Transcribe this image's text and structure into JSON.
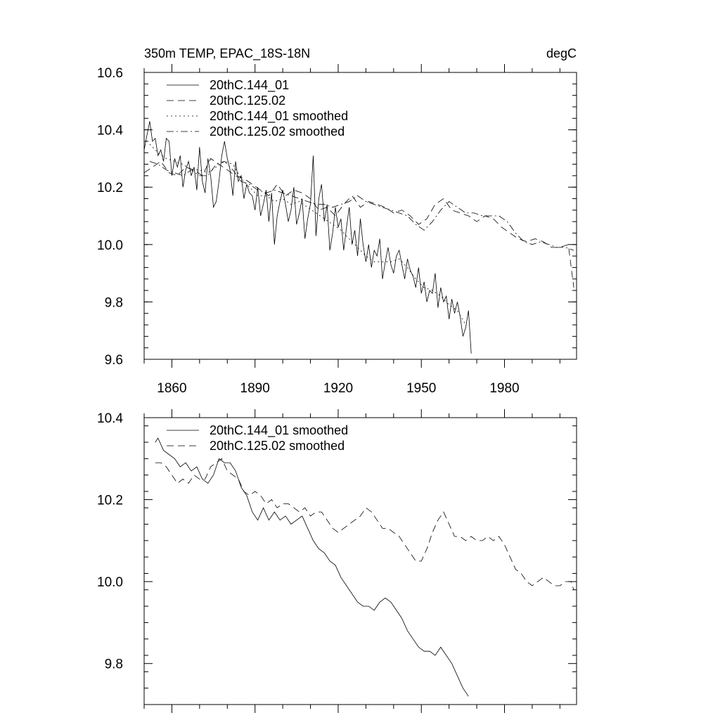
{
  "chart_data": [
    {
      "type": "line",
      "title_left": "350m TEMP, EPAC_18S-18N",
      "title_right": "degC",
      "xlabel": "",
      "ylabel": "",
      "xlim": [
        1850,
        2006
      ],
      "ylim": [
        9.6,
        10.6
      ],
      "xticks": [
        1860,
        1890,
        1920,
        1950,
        1980
      ],
      "xtick_labels": [
        "1860",
        "1890",
        "1920",
        "1950",
        "1980"
      ],
      "yticks": [
        9.6,
        9.8,
        10.0,
        10.2,
        10.4,
        10.6
      ],
      "ytick_labels": [
        "9.6",
        "9.8",
        "10.0",
        "10.2",
        "10.4",
        "10.6"
      ],
      "grid": false,
      "legend_position": "top-left",
      "series": [
        {
          "name": "20thC.144_01",
          "style": "solid",
          "x": [
            1850,
            1851,
            1852,
            1853,
            1854,
            1855,
            1856,
            1857,
            1858,
            1859,
            1860,
            1861,
            1862,
            1863,
            1864,
            1865,
            1866,
            1867,
            1868,
            1869,
            1870,
            1871,
            1872,
            1873,
            1874,
            1875,
            1876,
            1877,
            1878,
            1879,
            1880,
            1881,
            1882,
            1883,
            1884,
            1885,
            1886,
            1887,
            1888,
            1889,
            1890,
            1891,
            1892,
            1893,
            1894,
            1895,
            1896,
            1897,
            1898,
            1899,
            1900,
            1901,
            1902,
            1903,
            1904,
            1905,
            1906,
            1907,
            1908,
            1909,
            1910,
            1911,
            1912,
            1913,
            1914,
            1915,
            1916,
            1917,
            1918,
            1919,
            1920,
            1921,
            1922,
            1923,
            1924,
            1925,
            1926,
            1927,
            1928,
            1929,
            1930,
            1931,
            1932,
            1933,
            1934,
            1935,
            1936,
            1937,
            1938,
            1939,
            1940,
            1941,
            1942,
            1943,
            1944,
            1945,
            1946,
            1947,
            1948,
            1949,
            1950,
            1951,
            1952,
            1953,
            1954,
            1955,
            1956,
            1957,
            1958,
            1959,
            1960,
            1961,
            1962,
            1963,
            1964,
            1965,
            1966,
            1967,
            1968
          ],
          "values": [
            10.33,
            10.38,
            10.43,
            10.36,
            10.37,
            10.31,
            10.33,
            10.29,
            10.37,
            10.36,
            10.24,
            10.3,
            10.27,
            10.31,
            10.2,
            10.26,
            10.29,
            10.24,
            10.27,
            10.19,
            10.34,
            10.22,
            10.18,
            10.3,
            10.24,
            10.13,
            10.15,
            10.22,
            10.31,
            10.36,
            10.3,
            10.26,
            10.17,
            10.29,
            10.22,
            10.24,
            10.16,
            10.21,
            10.18,
            10.17,
            10.12,
            10.2,
            10.1,
            10.14,
            10.19,
            10.08,
            10.18,
            10.0,
            10.1,
            10.15,
            10.19,
            10.14,
            10.08,
            10.12,
            10.2,
            10.07,
            10.11,
            10.16,
            10.02,
            10.09,
            10.14,
            10.31,
            10.03,
            10.16,
            10.21,
            10.08,
            10.14,
            9.98,
            10.04,
            10.13,
            10.06,
            10.09,
            9.98,
            10.06,
            10.13,
            10.0,
            10.05,
            9.96,
            10.09,
            10.0,
            9.94,
            10.0,
            9.92,
            9.98,
            9.96,
            10.02,
            9.88,
            9.94,
            9.99,
            9.93,
            9.9,
            9.96,
            9.98,
            9.93,
            9.88,
            9.95,
            9.91,
            9.89,
            9.85,
            9.92,
            9.83,
            9.87,
            9.8,
            9.84,
            9.83,
            9.9,
            9.78,
            9.85,
            9.8,
            9.82,
            9.74,
            9.81,
            9.76,
            9.8,
            9.75,
            9.68,
            9.71,
            9.77,
            9.62
          ]
        },
        {
          "name": "20thC.125.02",
          "style": "dashed",
          "x": [
            1850,
            1853,
            1856,
            1859,
            1862,
            1865,
            1868,
            1871,
            1874,
            1877,
            1880,
            1883,
            1886,
            1889,
            1892,
            1895,
            1898,
            1901,
            1904,
            1907,
            1910,
            1913,
            1916,
            1919,
            1922,
            1925,
            1928,
            1931,
            1934,
            1937,
            1940,
            1943,
            1946,
            1949,
            1952,
            1955,
            1958,
            1961,
            1964,
            1967,
            1970,
            1973,
            1976,
            1979,
            1982,
            1985,
            1988,
            1991,
            1994,
            1997,
            2000,
            2003,
            2005
          ],
          "values": [
            10.25,
            10.27,
            10.29,
            10.25,
            10.24,
            10.27,
            10.26,
            10.24,
            10.3,
            10.28,
            10.26,
            10.24,
            10.23,
            10.21,
            10.19,
            10.17,
            10.21,
            10.17,
            10.19,
            10.18,
            10.16,
            10.12,
            10.13,
            10.1,
            10.14,
            10.17,
            10.13,
            10.15,
            10.14,
            10.13,
            10.11,
            10.12,
            10.1,
            10.07,
            10.09,
            10.14,
            10.16,
            10.12,
            10.11,
            10.1,
            10.08,
            10.1,
            10.09,
            10.06,
            10.04,
            10.02,
            10.01,
            10.02,
            10.01,
            9.99,
            9.99,
            10.0,
            9.85
          ]
        },
        {
          "name": "20thC.144_01 smoothed",
          "style": "dotted",
          "x": [
            1852,
            1855,
            1858,
            1861,
            1864,
            1867,
            1870,
            1873,
            1876,
            1879,
            1882,
            1885,
            1888,
            1891,
            1894,
            1897,
            1900,
            1903,
            1906,
            1909,
            1912,
            1915,
            1918,
            1921,
            1924,
            1927,
            1930,
            1933,
            1936,
            1939,
            1942,
            1945,
            1948,
            1951,
            1954,
            1957,
            1960,
            1963,
            1966
          ],
          "values": [
            10.35,
            10.32,
            10.3,
            10.29,
            10.28,
            10.26,
            10.26,
            10.25,
            10.27,
            10.29,
            10.28,
            10.23,
            10.2,
            10.17,
            10.17,
            10.15,
            10.16,
            10.14,
            10.15,
            10.13,
            10.11,
            10.09,
            10.07,
            10.05,
            10.02,
            9.99,
            9.96,
            9.94,
            9.94,
            9.94,
            9.95,
            9.92,
            9.88,
            9.85,
            9.84,
            9.82,
            9.79,
            9.77,
            9.72
          ]
        },
        {
          "name": "20thC.125.02 smoothed",
          "style": "dashdot",
          "x": [
            1852,
            1855,
            1858,
            1861,
            1864,
            1867,
            1870,
            1873,
            1876,
            1879,
            1882,
            1885,
            1888,
            1891,
            1894,
            1897,
            1900,
            1903,
            1906,
            1909,
            1912,
            1915,
            1918,
            1921,
            1924,
            1927,
            1930,
            1933,
            1936,
            1939,
            1942,
            1945,
            1948,
            1951,
            1954,
            1957,
            1960,
            1963,
            1966,
            1969,
            1972,
            1975,
            1978,
            1981,
            1984,
            1987,
            1990,
            1993,
            1996,
            1999,
            2002,
            2005
          ],
          "values": [
            10.29,
            10.28,
            10.26,
            10.25,
            10.24,
            10.26,
            10.24,
            10.24,
            10.28,
            10.29,
            10.26,
            10.22,
            10.21,
            10.19,
            10.18,
            10.19,
            10.18,
            10.17,
            10.16,
            10.15,
            10.14,
            10.14,
            10.13,
            10.14,
            10.15,
            10.17,
            10.15,
            10.14,
            10.13,
            10.12,
            10.11,
            10.1,
            10.07,
            10.05,
            10.08,
            10.12,
            10.15,
            10.13,
            10.11,
            10.11,
            10.1,
            10.1,
            10.1,
            10.08,
            10.04,
            10.01,
            10.0,
            10.01,
            10.0,
            9.99,
            9.99,
            9.98
          ]
        }
      ]
    },
    {
      "type": "line",
      "title_left": "",
      "title_right": "",
      "xlabel": "",
      "ylabel": "",
      "xlim": [
        1850,
        2006
      ],
      "ylim": [
        9.7,
        10.4
      ],
      "xticks": [
        1860,
        1890,
        1920,
        1950,
        1980
      ],
      "xtick_labels": [],
      "yticks": [
        9.8,
        10.0,
        10.2,
        10.4
      ],
      "ytick_labels": [
        "9.8",
        "10.0",
        "10.2",
        "10.4"
      ],
      "grid": false,
      "legend_position": "top-left",
      "series": [
        {
          "name": "20thC.144_01 smoothed",
          "style": "solid",
          "x": [
            1854,
            1855,
            1857,
            1859,
            1861,
            1863,
            1865,
            1867,
            1869,
            1871,
            1873,
            1875,
            1877,
            1879,
            1881,
            1883,
            1885,
            1887,
            1889,
            1891,
            1893,
            1895,
            1897,
            1899,
            1901,
            1903,
            1905,
            1907,
            1909,
            1911,
            1913,
            1915,
            1917,
            1919,
            1921,
            1923,
            1925,
            1927,
            1929,
            1931,
            1933,
            1935,
            1937,
            1939,
            1941,
            1943,
            1945,
            1947,
            1949,
            1951,
            1953,
            1955,
            1957,
            1959,
            1961,
            1963,
            1965,
            1967
          ],
          "values": [
            10.34,
            10.35,
            10.32,
            10.31,
            10.3,
            10.28,
            10.29,
            10.27,
            10.28,
            10.25,
            10.24,
            10.26,
            10.3,
            10.29,
            10.29,
            10.27,
            10.23,
            10.21,
            10.17,
            10.15,
            10.18,
            10.15,
            10.17,
            10.15,
            10.16,
            10.14,
            10.15,
            10.16,
            10.13,
            10.1,
            10.08,
            10.07,
            10.05,
            10.04,
            10.01,
            9.99,
            9.97,
            9.95,
            9.94,
            9.94,
            9.93,
            9.95,
            9.96,
            9.95,
            9.93,
            9.91,
            9.88,
            9.86,
            9.84,
            9.83,
            9.83,
            9.82,
            9.84,
            9.82,
            9.8,
            9.77,
            9.74,
            9.72
          ]
        },
        {
          "name": "20thC.125.02 smoothed",
          "style": "dashed",
          "x": [
            1854,
            1856,
            1858,
            1860,
            1862,
            1864,
            1866,
            1868,
            1870,
            1872,
            1874,
            1876,
            1878,
            1880,
            1882,
            1884,
            1886,
            1888,
            1890,
            1892,
            1894,
            1896,
            1898,
            1900,
            1902,
            1904,
            1906,
            1908,
            1910,
            1912,
            1914,
            1916,
            1918,
            1920,
            1922,
            1924,
            1926,
            1928,
            1930,
            1932,
            1934,
            1936,
            1938,
            1940,
            1942,
            1944,
            1946,
            1948,
            1950,
            1952,
            1954,
            1956,
            1958,
            1960,
            1962,
            1964,
            1966,
            1968,
            1970,
            1972,
            1974,
            1976,
            1978,
            1980,
            1982,
            1984,
            1986,
            1988,
            1990,
            1992,
            1994,
            1996,
            1998,
            2000,
            2002,
            2004,
            2005
          ],
          "values": [
            10.29,
            10.29,
            10.28,
            10.26,
            10.24,
            10.25,
            10.24,
            10.26,
            10.25,
            10.25,
            10.28,
            10.29,
            10.3,
            10.27,
            10.26,
            10.25,
            10.22,
            10.21,
            10.22,
            10.21,
            10.19,
            10.2,
            10.18,
            10.19,
            10.19,
            10.18,
            10.17,
            10.18,
            10.16,
            10.17,
            10.17,
            10.15,
            10.13,
            10.12,
            10.13,
            10.14,
            10.15,
            10.16,
            10.18,
            10.17,
            10.15,
            10.13,
            10.13,
            10.12,
            10.11,
            10.09,
            10.07,
            10.05,
            10.05,
            10.08,
            10.12,
            10.15,
            10.17,
            10.14,
            10.11,
            10.11,
            10.1,
            10.11,
            10.1,
            10.1,
            10.11,
            10.1,
            10.11,
            10.09,
            10.06,
            10.03,
            10.02,
            10.0,
            9.99,
            10.0,
            10.01,
            10.0,
            9.99,
            9.99,
            10.0,
            10.0,
            9.98
          ]
        }
      ]
    }
  ]
}
